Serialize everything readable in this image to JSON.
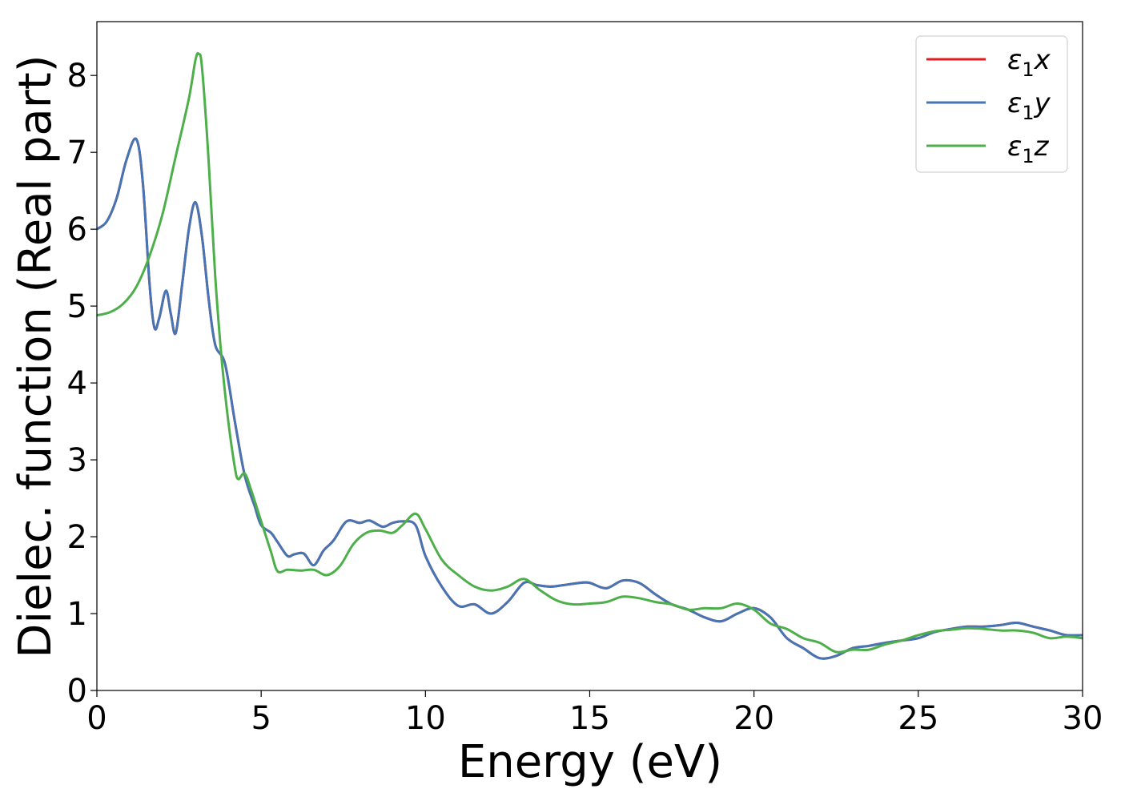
{
  "chart_data": {
    "type": "line",
    "xlabel": "Energy (eV)",
    "ylabel": "Dielec. function (Real part)",
    "xlim": [
      0,
      30
    ],
    "ylim": [
      0,
      8.7
    ],
    "xticks": [
      0,
      5,
      10,
      15,
      20,
      25,
      30
    ],
    "yticks": [
      0,
      1,
      2,
      3,
      4,
      5,
      6,
      7,
      8
    ],
    "grid": false,
    "legend_position": "top-right",
    "series": [
      {
        "name": "ε1x",
        "color": "#e41a1c",
        "points": [
          [
            0,
            6.0
          ],
          [
            0.3,
            6.1
          ],
          [
            0.6,
            6.4
          ],
          [
            0.9,
            6.9
          ],
          [
            1.2,
            7.17
          ],
          [
            1.4,
            6.6
          ],
          [
            1.6,
            5.3
          ],
          [
            1.75,
            4.72
          ],
          [
            1.9,
            4.85
          ],
          [
            2.1,
            5.2
          ],
          [
            2.25,
            4.9
          ],
          [
            2.4,
            4.65
          ],
          [
            2.6,
            5.3
          ],
          [
            2.8,
            6.0
          ],
          [
            3.0,
            6.35
          ],
          [
            3.2,
            5.9
          ],
          [
            3.4,
            5.1
          ],
          [
            3.6,
            4.5
          ],
          [
            3.9,
            4.25
          ],
          [
            4.2,
            3.5
          ],
          [
            4.5,
            2.8
          ],
          [
            4.8,
            2.4
          ],
          [
            5.0,
            2.15
          ],
          [
            5.3,
            2.05
          ],
          [
            5.5,
            1.93
          ],
          [
            5.8,
            1.75
          ],
          [
            6.0,
            1.77
          ],
          [
            6.3,
            1.78
          ],
          [
            6.6,
            1.63
          ],
          [
            6.9,
            1.82
          ],
          [
            7.2,
            1.95
          ],
          [
            7.6,
            2.2
          ],
          [
            8.0,
            2.18
          ],
          [
            8.3,
            2.21
          ],
          [
            8.7,
            2.13
          ],
          [
            9.0,
            2.18
          ],
          [
            9.3,
            2.2
          ],
          [
            9.7,
            2.15
          ],
          [
            10.0,
            1.75
          ],
          [
            10.5,
            1.35
          ],
          [
            11.0,
            1.1
          ],
          [
            11.5,
            1.12
          ],
          [
            12.0,
            1.0
          ],
          [
            12.5,
            1.15
          ],
          [
            13.0,
            1.4
          ],
          [
            13.4,
            1.37
          ],
          [
            13.8,
            1.35
          ],
          [
            14.2,
            1.37
          ],
          [
            14.7,
            1.4
          ],
          [
            15.0,
            1.4
          ],
          [
            15.5,
            1.33
          ],
          [
            16.0,
            1.43
          ],
          [
            16.5,
            1.4
          ],
          [
            17.0,
            1.25
          ],
          [
            17.5,
            1.12
          ],
          [
            18.0,
            1.05
          ],
          [
            18.5,
            0.95
          ],
          [
            19.0,
            0.9
          ],
          [
            19.5,
            1.0
          ],
          [
            20.0,
            1.07
          ],
          [
            20.5,
            0.95
          ],
          [
            21.0,
            0.68
          ],
          [
            21.5,
            0.55
          ],
          [
            22.0,
            0.42
          ],
          [
            22.5,
            0.45
          ],
          [
            23.0,
            0.55
          ],
          [
            23.5,
            0.58
          ],
          [
            24.0,
            0.62
          ],
          [
            24.5,
            0.65
          ],
          [
            25.0,
            0.68
          ],
          [
            25.5,
            0.76
          ],
          [
            26.0,
            0.8
          ],
          [
            26.5,
            0.83
          ],
          [
            27.0,
            0.83
          ],
          [
            27.5,
            0.85
          ],
          [
            28.0,
            0.88
          ],
          [
            28.5,
            0.83
          ],
          [
            29.0,
            0.78
          ],
          [
            29.5,
            0.72
          ],
          [
            30.0,
            0.72
          ]
        ]
      },
      {
        "name": "ε1y",
        "color": "#4575b4",
        "points": [
          [
            0,
            6.0
          ],
          [
            0.3,
            6.1
          ],
          [
            0.6,
            6.4
          ],
          [
            0.9,
            6.9
          ],
          [
            1.2,
            7.17
          ],
          [
            1.4,
            6.6
          ],
          [
            1.6,
            5.3
          ],
          [
            1.75,
            4.72
          ],
          [
            1.9,
            4.85
          ],
          [
            2.1,
            5.2
          ],
          [
            2.25,
            4.9
          ],
          [
            2.4,
            4.65
          ],
          [
            2.6,
            5.3
          ],
          [
            2.8,
            6.0
          ],
          [
            3.0,
            6.35
          ],
          [
            3.2,
            5.9
          ],
          [
            3.4,
            5.1
          ],
          [
            3.6,
            4.5
          ],
          [
            3.9,
            4.25
          ],
          [
            4.2,
            3.5
          ],
          [
            4.5,
            2.8
          ],
          [
            4.8,
            2.4
          ],
          [
            5.0,
            2.15
          ],
          [
            5.3,
            2.05
          ],
          [
            5.5,
            1.93
          ],
          [
            5.8,
            1.75
          ],
          [
            6.0,
            1.77
          ],
          [
            6.3,
            1.78
          ],
          [
            6.6,
            1.63
          ],
          [
            6.9,
            1.82
          ],
          [
            7.2,
            1.95
          ],
          [
            7.6,
            2.2
          ],
          [
            8.0,
            2.18
          ],
          [
            8.3,
            2.21
          ],
          [
            8.7,
            2.13
          ],
          [
            9.0,
            2.18
          ],
          [
            9.3,
            2.2
          ],
          [
            9.7,
            2.15
          ],
          [
            10.0,
            1.75
          ],
          [
            10.5,
            1.35
          ],
          [
            11.0,
            1.1
          ],
          [
            11.5,
            1.12
          ],
          [
            12.0,
            1.0
          ],
          [
            12.5,
            1.15
          ],
          [
            13.0,
            1.4
          ],
          [
            13.4,
            1.37
          ],
          [
            13.8,
            1.35
          ],
          [
            14.2,
            1.37
          ],
          [
            14.7,
            1.4
          ],
          [
            15.0,
            1.4
          ],
          [
            15.5,
            1.33
          ],
          [
            16.0,
            1.43
          ],
          [
            16.5,
            1.4
          ],
          [
            17.0,
            1.25
          ],
          [
            17.5,
            1.12
          ],
          [
            18.0,
            1.05
          ],
          [
            18.5,
            0.95
          ],
          [
            19.0,
            0.9
          ],
          [
            19.5,
            1.0
          ],
          [
            20.0,
            1.07
          ],
          [
            20.5,
            0.95
          ],
          [
            21.0,
            0.68
          ],
          [
            21.5,
            0.55
          ],
          [
            22.0,
            0.42
          ],
          [
            22.5,
            0.45
          ],
          [
            23.0,
            0.55
          ],
          [
            23.5,
            0.58
          ],
          [
            24.0,
            0.62
          ],
          [
            24.5,
            0.65
          ],
          [
            25.0,
            0.68
          ],
          [
            25.5,
            0.76
          ],
          [
            26.0,
            0.8
          ],
          [
            26.5,
            0.83
          ],
          [
            27.0,
            0.83
          ],
          [
            27.5,
            0.85
          ],
          [
            28.0,
            0.88
          ],
          [
            28.5,
            0.83
          ],
          [
            29.0,
            0.78
          ],
          [
            29.5,
            0.72
          ],
          [
            30.0,
            0.72
          ]
        ]
      },
      {
        "name": "ε1z",
        "color": "#4daf4a",
        "points": [
          [
            0,
            4.88
          ],
          [
            0.4,
            4.92
          ],
          [
            0.8,
            5.03
          ],
          [
            1.2,
            5.25
          ],
          [
            1.6,
            5.65
          ],
          [
            2.0,
            6.2
          ],
          [
            2.4,
            6.95
          ],
          [
            2.8,
            7.7
          ],
          [
            3.0,
            8.2
          ],
          [
            3.1,
            8.28
          ],
          [
            3.2,
            8.1
          ],
          [
            3.4,
            6.9
          ],
          [
            3.6,
            5.4
          ],
          [
            3.8,
            4.3
          ],
          [
            4.0,
            3.5
          ],
          [
            4.2,
            2.9
          ],
          [
            4.3,
            2.75
          ],
          [
            4.5,
            2.82
          ],
          [
            4.7,
            2.6
          ],
          [
            5.0,
            2.2
          ],
          [
            5.3,
            1.8
          ],
          [
            5.5,
            1.55
          ],
          [
            5.8,
            1.57
          ],
          [
            6.2,
            1.56
          ],
          [
            6.6,
            1.57
          ],
          [
            7.0,
            1.5
          ],
          [
            7.4,
            1.62
          ],
          [
            7.8,
            1.9
          ],
          [
            8.2,
            2.05
          ],
          [
            8.6,
            2.08
          ],
          [
            9.0,
            2.05
          ],
          [
            9.3,
            2.15
          ],
          [
            9.7,
            2.3
          ],
          [
            10.0,
            2.1
          ],
          [
            10.5,
            1.7
          ],
          [
            11.0,
            1.5
          ],
          [
            11.5,
            1.35
          ],
          [
            12.0,
            1.3
          ],
          [
            12.5,
            1.35
          ],
          [
            13.0,
            1.45
          ],
          [
            13.5,
            1.3
          ],
          [
            14.0,
            1.17
          ],
          [
            14.5,
            1.12
          ],
          [
            15.0,
            1.13
          ],
          [
            15.5,
            1.15
          ],
          [
            16.0,
            1.22
          ],
          [
            16.5,
            1.2
          ],
          [
            17.0,
            1.15
          ],
          [
            17.5,
            1.12
          ],
          [
            18.0,
            1.05
          ],
          [
            18.5,
            1.07
          ],
          [
            19.0,
            1.07
          ],
          [
            19.5,
            1.13
          ],
          [
            20.0,
            1.05
          ],
          [
            20.5,
            0.87
          ],
          [
            21.0,
            0.8
          ],
          [
            21.5,
            0.68
          ],
          [
            22.0,
            0.62
          ],
          [
            22.5,
            0.5
          ],
          [
            23.0,
            0.53
          ],
          [
            23.5,
            0.53
          ],
          [
            24.0,
            0.6
          ],
          [
            24.5,
            0.65
          ],
          [
            25.0,
            0.72
          ],
          [
            25.5,
            0.77
          ],
          [
            26.0,
            0.79
          ],
          [
            26.5,
            0.81
          ],
          [
            27.0,
            0.8
          ],
          [
            27.5,
            0.78
          ],
          [
            28.0,
            0.78
          ],
          [
            28.5,
            0.75
          ],
          [
            29.0,
            0.68
          ],
          [
            29.5,
            0.7
          ],
          [
            30.0,
            0.68
          ]
        ]
      }
    ]
  }
}
